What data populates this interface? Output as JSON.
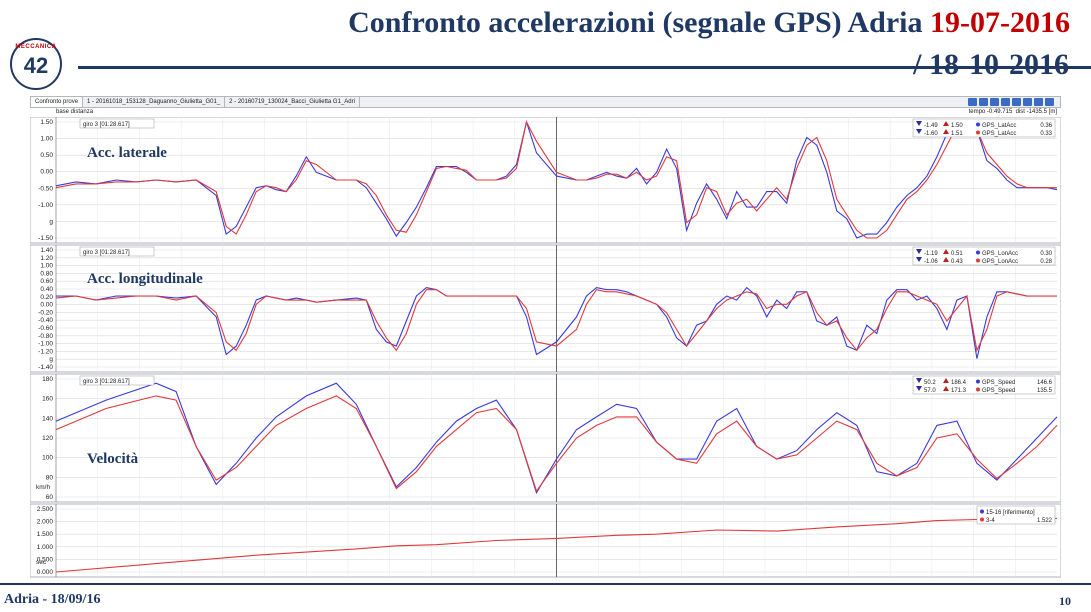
{
  "header": {
    "title_main": "Confronto accelerazioni (segnale GPS) Adria ",
    "title_date1": "19-07-2016",
    "title_date2": "/ 18-10-2016"
  },
  "logo": {
    "text": "42",
    "sub": "MECCANICA"
  },
  "toolbar": {
    "tabs": [
      "Confronto prove",
      "1 - 20161018_153128_Daguanno_Giulietta_G01_",
      "2 - 20160719_130024_Bacci_Giulietta G1_Adri"
    ],
    "base_label": "base distanza",
    "tempo": "tempo -0:49.715",
    "dist": "dist -1435.5 [m]"
  },
  "colors": {
    "blue": "#3a3adb",
    "red": "#e03a3a",
    "navy": "#1f3864"
  },
  "footer": {
    "left": "Adria - 18/09/16",
    "page": "10"
  },
  "chart_data": [
    {
      "type": "line",
      "title": "Acc. laterale",
      "lap_label": "giro 3 [01:28.617]",
      "ylim": [
        -1.5,
        1.5
      ],
      "yticks": [
        "1.50",
        "1.00",
        "0.50",
        "0.00",
        "-0.50",
        "-1.00",
        "g",
        "-1.50"
      ],
      "legend": [
        {
          "series": "GPS_LatAcc",
          "min": "-1.49",
          "max": "1.50",
          "cur": "0.36",
          "color": "blue"
        },
        {
          "series": "GPS_LatAcc",
          "min": "-1.60",
          "max": "1.51",
          "cur": "0.33",
          "color": "red"
        }
      ],
      "x": [
        0,
        2,
        4,
        6,
        8,
        10,
        12,
        14,
        16,
        17,
        18,
        19,
        20,
        21,
        22,
        23,
        24,
        25,
        26,
        28,
        30,
        31,
        32,
        33,
        34,
        35,
        36,
        37,
        38,
        39,
        40,
        41,
        42,
        43,
        44,
        45,
        46,
        47,
        48,
        50,
        52,
        53,
        54,
        55,
        56,
        57,
        58,
        59,
        60,
        61,
        62,
        63,
        64,
        65,
        66,
        67,
        68,
        69,
        70,
        71,
        72,
        73,
        74,
        75,
        76,
        77,
        78,
        79,
        80,
        81,
        82,
        83,
        84,
        85,
        86,
        87,
        88,
        89,
        90,
        91,
        92,
        93,
        94,
        95,
        96,
        97,
        98,
        99,
        100
      ],
      "series": [
        {
          "name": "GPS_LatAcc",
          "color": "blue",
          "values": [
            -0.15,
            -0.05,
            -0.1,
            0.0,
            -0.05,
            0.0,
            -0.05,
            0.0,
            -0.4,
            -1.4,
            -1.2,
            -0.7,
            -0.2,
            -0.15,
            -0.25,
            -0.3,
            0.1,
            0.6,
            0.2,
            0.0,
            0.0,
            -0.2,
            -0.6,
            -1.0,
            -1.45,
            -1.1,
            -0.7,
            -0.2,
            0.35,
            0.35,
            0.35,
            0.2,
            0.0,
            0.0,
            0.0,
            0.1,
            0.4,
            1.5,
            0.7,
            0.1,
            0.0,
            0.0,
            0.1,
            0.2,
            0.1,
            0.05,
            0.3,
            -0.1,
            0.2,
            0.8,
            0.3,
            -1.3,
            -0.6,
            -0.1,
            -0.5,
            -1.0,
            -0.3,
            -0.7,
            -0.7,
            -0.3,
            -0.3,
            -0.6,
            0.5,
            1.1,
            0.9,
            0.2,
            -0.8,
            -1.0,
            -1.5,
            -1.4,
            -1.4,
            -1.1,
            -0.7,
            -0.4,
            -0.2,
            0.1,
            0.6,
            1.2,
            1.5,
            1.3,
            1.3,
            0.5,
            0.3,
            0.0,
            -0.2,
            -0.2,
            -0.2,
            -0.2,
            -0.25
          ]
        },
        {
          "name": "GPS_LatAcc",
          "color": "red",
          "values": [
            -0.2,
            -0.1,
            -0.1,
            -0.05,
            -0.05,
            0.0,
            -0.05,
            0.0,
            -0.3,
            -1.2,
            -1.4,
            -0.9,
            -0.3,
            -0.15,
            -0.2,
            -0.3,
            0.0,
            0.5,
            0.4,
            0.0,
            0.0,
            -0.1,
            -0.4,
            -0.9,
            -1.3,
            -1.35,
            -0.9,
            -0.3,
            0.3,
            0.35,
            0.3,
            0.25,
            0.0,
            0.0,
            0.0,
            0.05,
            0.3,
            1.5,
            1.0,
            0.2,
            0.0,
            0.0,
            0.05,
            0.15,
            0.15,
            0.05,
            0.2,
            0.0,
            0.1,
            0.6,
            0.5,
            -1.1,
            -0.9,
            -0.2,
            -0.3,
            -0.9,
            -0.6,
            -0.5,
            -0.8,
            -0.5,
            -0.2,
            -0.5,
            0.3,
            0.9,
            1.1,
            0.5,
            -0.5,
            -0.9,
            -1.3,
            -1.5,
            -1.5,
            -1.3,
            -0.9,
            -0.5,
            -0.3,
            0.0,
            0.4,
            0.9,
            1.4,
            1.5,
            1.3,
            0.7,
            0.4,
            0.1,
            -0.1,
            -0.2,
            -0.2,
            -0.2,
            -0.2
          ]
        }
      ]
    },
    {
      "type": "line",
      "title": "Acc. longitudinale",
      "lap_label": "giro 3 [01:28.617]",
      "ylim": [
        -1.4,
        1.4
      ],
      "yticks": [
        "1.40",
        "1.20",
        "1.00",
        "0.80",
        "0.60",
        "0.40",
        "0.20",
        "0.00",
        "-0.20",
        "-0.40",
        "-0.60",
        "-0.80",
        "-1.00",
        "-1.20",
        "g",
        "-1.40"
      ],
      "legend": [
        {
          "series": "GPS_LonAcc",
          "min": "-1.19",
          "max": "0.51",
          "cur": "0.30",
          "color": "blue"
        },
        {
          "series": "GPS_LonAcc",
          "min": "-1.06",
          "max": "0.43",
          "cur": "0.28",
          "color": "red"
        }
      ],
      "x": [
        0,
        2,
        4,
        6,
        8,
        10,
        12,
        14,
        16,
        17,
        18,
        19,
        20,
        21,
        22,
        23,
        24,
        25,
        26,
        28,
        30,
        31,
        32,
        33,
        34,
        35,
        36,
        37,
        38,
        39,
        40,
        41,
        42,
        43,
        44,
        45,
        46,
        47,
        48,
        50,
        52,
        53,
        54,
        55,
        56,
        57,
        58,
        59,
        60,
        61,
        62,
        63,
        64,
        65,
        66,
        67,
        68,
        69,
        70,
        71,
        72,
        73,
        74,
        75,
        76,
        77,
        78,
        79,
        80,
        81,
        82,
        83,
        84,
        85,
        86,
        87,
        88,
        89,
        90,
        91,
        92,
        93,
        94,
        95,
        96,
        97,
        98,
        99,
        100
      ],
      "series": [
        {
          "name": "GPS_LonAcc",
          "color": "blue",
          "values": [
            0.3,
            0.3,
            0.2,
            0.3,
            0.3,
            0.3,
            0.25,
            0.3,
            -0.2,
            -1.1,
            -0.9,
            -0.4,
            0.2,
            0.3,
            0.25,
            0.2,
            0.25,
            0.2,
            0.15,
            0.2,
            0.25,
            0.2,
            -0.5,
            -0.8,
            -0.9,
            -0.3,
            0.3,
            0.5,
            0.45,
            0.3,
            0.3,
            0.3,
            0.3,
            0.3,
            0.3,
            0.3,
            0.3,
            -0.2,
            -1.1,
            -0.8,
            -0.2,
            0.3,
            0.5,
            0.45,
            0.45,
            0.4,
            0.3,
            0.2,
            0.1,
            -0.2,
            -0.7,
            -0.9,
            -0.4,
            -0.3,
            0.1,
            0.3,
            0.2,
            0.5,
            0.3,
            -0.2,
            0.2,
            0.0,
            0.4,
            0.4,
            -0.3,
            -0.4,
            -0.2,
            -0.9,
            -1.0,
            -0.4,
            -0.6,
            0.2,
            0.45,
            0.45,
            0.2,
            0.3,
            0.0,
            -0.5,
            0.2,
            0.3,
            -1.2,
            -0.2,
            0.4,
            0.4,
            0.35,
            0.3,
            0.3,
            0.3,
            0.3
          ]
        },
        {
          "name": "GPS_LonAcc",
          "color": "red",
          "values": [
            0.25,
            0.3,
            0.2,
            0.25,
            0.3,
            0.3,
            0.2,
            0.3,
            -0.1,
            -0.8,
            -1.0,
            -0.6,
            0.1,
            0.3,
            0.25,
            0.2,
            0.2,
            0.2,
            0.15,
            0.2,
            0.2,
            0.2,
            -0.3,
            -0.7,
            -1.0,
            -0.6,
            0.1,
            0.45,
            0.45,
            0.3,
            0.3,
            0.3,
            0.3,
            0.3,
            0.3,
            0.3,
            0.3,
            0.0,
            -0.8,
            -0.9,
            -0.5,
            0.1,
            0.45,
            0.4,
            0.4,
            0.35,
            0.3,
            0.2,
            0.1,
            -0.1,
            -0.5,
            -0.9,
            -0.6,
            -0.3,
            0.0,
            0.2,
            0.3,
            0.4,
            0.35,
            0.0,
            0.1,
            0.1,
            0.3,
            0.4,
            -0.1,
            -0.4,
            -0.3,
            -0.7,
            -1.0,
            -0.7,
            -0.5,
            0.0,
            0.4,
            0.4,
            0.3,
            0.2,
            0.1,
            -0.3,
            0.0,
            0.3,
            -1.0,
            -0.5,
            0.3,
            0.4,
            0.35,
            0.3,
            0.3,
            0.3,
            0.3
          ]
        }
      ]
    },
    {
      "type": "line",
      "title": "Velocità",
      "lap_label": "giro 3 [01:28.617]",
      "unit": "km/h",
      "ylim": [
        50,
        190
      ],
      "yticks": [
        "180",
        "160",
        "140",
        "120",
        "100",
        "80",
        "60"
      ],
      "legend": [
        {
          "series": "GPS_Speed",
          "min": "50.2",
          "max": "186.4",
          "cur": "146.6",
          "color": "blue"
        },
        {
          "series": "GPS_Speed",
          "min": "57.0",
          "max": "171.3",
          "cur": "135.5",
          "color": "red"
        }
      ],
      "x": [
        0,
        5,
        10,
        12,
        14,
        16,
        18,
        20,
        22,
        25,
        28,
        30,
        32,
        34,
        36,
        38,
        40,
        42,
        44,
        46,
        48,
        50,
        52,
        54,
        56,
        58,
        60,
        62,
        64,
        66,
        68,
        70,
        72,
        74,
        76,
        78,
        80,
        82,
        84,
        86,
        88,
        90,
        92,
        94,
        96,
        98,
        100
      ],
      "series": [
        {
          "name": "GPS_Speed",
          "color": "blue",
          "values": [
            140,
            165,
            185,
            175,
            110,
            65,
            90,
            120,
            145,
            170,
            185,
            160,
            110,
            62,
            85,
            115,
            140,
            155,
            165,
            130,
            55,
            95,
            130,
            145,
            160,
            155,
            115,
            95,
            95,
            140,
            155,
            110,
            95,
            105,
            130,
            150,
            135,
            80,
            75,
            90,
            135,
            140,
            90,
            70,
            95,
            120,
            145
          ]
        },
        {
          "name": "GPS_Speed",
          "color": "red",
          "values": [
            130,
            155,
            170,
            165,
            110,
            70,
            85,
            110,
            135,
            155,
            170,
            155,
            110,
            60,
            80,
            110,
            130,
            150,
            155,
            130,
            57,
            90,
            120,
            135,
            145,
            145,
            115,
            95,
            90,
            125,
            140,
            110,
            95,
            100,
            120,
            140,
            130,
            90,
            75,
            85,
            120,
            125,
            95,
            72,
            90,
            110,
            135
          ]
        }
      ]
    },
    {
      "type": "line",
      "title": "",
      "unit": "sec",
      "ylim": [
        0,
        3.0
      ],
      "yticks": [
        "2.500",
        "2.000",
        "1.500",
        "1.000",
        "0.500",
        "0.000"
      ],
      "legend": [
        {
          "series": "15-16 [riferimento]",
          "cur": "",
          "color": "blue"
        },
        {
          "series": "3-4",
          "cur": "1.522",
          "color": "red"
        }
      ],
      "x": [
        0,
        10,
        20,
        30,
        34,
        38,
        44,
        50,
        56,
        60,
        66,
        72,
        78,
        84,
        88,
        92,
        96,
        100
      ],
      "series": [
        {
          "name": "3-4",
          "color": "red",
          "values": [
            0.0,
            0.4,
            0.8,
            1.1,
            1.25,
            1.3,
            1.5,
            1.6,
            1.75,
            1.8,
            2.0,
            1.95,
            2.15,
            2.3,
            2.45,
            2.5,
            2.5,
            2.55
          ]
        }
      ]
    }
  ]
}
